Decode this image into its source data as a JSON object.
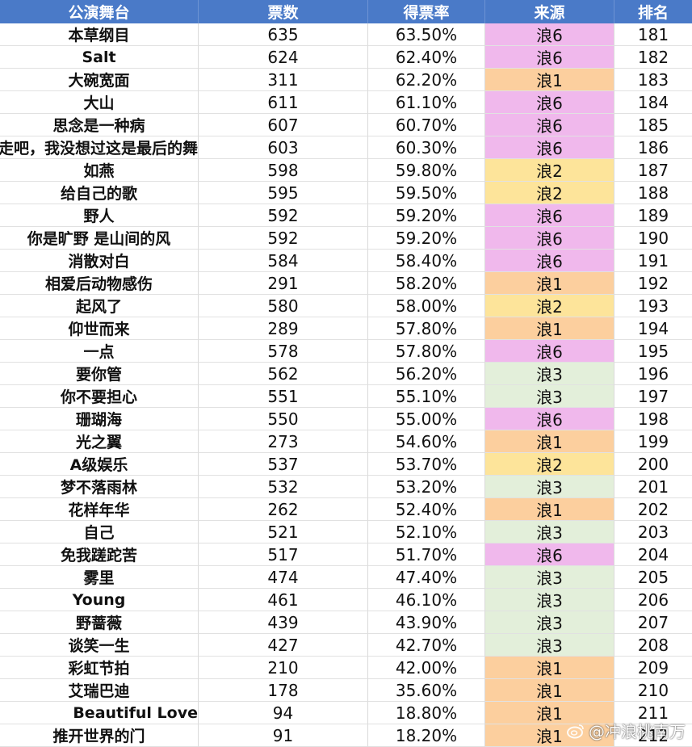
{
  "header": {
    "stage": "公演舞台",
    "votes": "票数",
    "rate": "得票率",
    "source": "来源",
    "rank": "排名"
  },
  "rows": [
    {
      "stage": "本草纲目",
      "votes": "635",
      "rate": "63.50%",
      "source": "浪6",
      "rank": "181"
    },
    {
      "stage": "Salt",
      "votes": "624",
      "rate": "62.40%",
      "source": "浪6",
      "rank": "182"
    },
    {
      "stage": "大碗宽面",
      "votes": "311",
      "rate": "62.20%",
      "source": "浪1",
      "rank": "183"
    },
    {
      "stage": "大山",
      "votes": "611",
      "rate": "61.10%",
      "source": "浪6",
      "rank": "184"
    },
    {
      "stage": "思念是一种病",
      "votes": "607",
      "rate": "60.70%",
      "source": "浪6",
      "rank": "185"
    },
    {
      "stage": "走吧，我没想过这是最后的舞",
      "votes": "603",
      "rate": "60.30%",
      "source": "浪6",
      "rank": "186"
    },
    {
      "stage": "如燕",
      "votes": "598",
      "rate": "59.80%",
      "source": "浪2",
      "rank": "187"
    },
    {
      "stage": "给自己的歌",
      "votes": "595",
      "rate": "59.50%",
      "source": "浪2",
      "rank": "188"
    },
    {
      "stage": "野人",
      "votes": "592",
      "rate": "59.20%",
      "source": "浪6",
      "rank": "189"
    },
    {
      "stage": "你是旷野 是山间的风",
      "votes": "592",
      "rate": "59.20%",
      "source": "浪6",
      "rank": "190"
    },
    {
      "stage": "消散对白",
      "votes": "584",
      "rate": "58.40%",
      "source": "浪6",
      "rank": "191"
    },
    {
      "stage": "相爱后动物感伤",
      "votes": "291",
      "rate": "58.20%",
      "source": "浪1",
      "rank": "192"
    },
    {
      "stage": "起风了",
      "votes": "580",
      "rate": "58.00%",
      "source": "浪2",
      "rank": "193"
    },
    {
      "stage": "仰世而来",
      "votes": "289",
      "rate": "57.80%",
      "source": "浪1",
      "rank": "194"
    },
    {
      "stage": "一点",
      "votes": "578",
      "rate": "57.80%",
      "source": "浪6",
      "rank": "195"
    },
    {
      "stage": "要你管",
      "votes": "562",
      "rate": "56.20%",
      "source": "浪3",
      "rank": "196"
    },
    {
      "stage": "你不要担心",
      "votes": "551",
      "rate": "55.10%",
      "source": "浪3",
      "rank": "197"
    },
    {
      "stage": "珊瑚海",
      "votes": "550",
      "rate": "55.00%",
      "source": "浪6",
      "rank": "198"
    },
    {
      "stage": "光之翼",
      "votes": "273",
      "rate": "54.60%",
      "source": "浪1",
      "rank": "199"
    },
    {
      "stage": "A级娱乐",
      "votes": "537",
      "rate": "53.70%",
      "source": "浪2",
      "rank": "200"
    },
    {
      "stage": "梦不落雨林",
      "votes": "532",
      "rate": "53.20%",
      "source": "浪3",
      "rank": "201"
    },
    {
      "stage": "花样年华",
      "votes": "262",
      "rate": "52.40%",
      "source": "浪1",
      "rank": "202"
    },
    {
      "stage": "自己",
      "votes": "521",
      "rate": "52.10%",
      "source": "浪3",
      "rank": "203"
    },
    {
      "stage": "免我蹉跎苦",
      "votes": "517",
      "rate": "51.70%",
      "source": "浪6",
      "rank": "204"
    },
    {
      "stage": "雾里",
      "votes": "474",
      "rate": "47.40%",
      "source": "浪3",
      "rank": "205"
    },
    {
      "stage": "Young",
      "votes": "461",
      "rate": "46.10%",
      "source": "浪3",
      "rank": "206"
    },
    {
      "stage": "野蔷薇",
      "votes": "439",
      "rate": "43.90%",
      "source": "浪3",
      "rank": "207"
    },
    {
      "stage": "谈笑一生",
      "votes": "427",
      "rate": "42.70%",
      "source": "浪3",
      "rank": "208"
    },
    {
      "stage": "彩虹节拍",
      "votes": "210",
      "rate": "42.00%",
      "source": "浪1",
      "rank": "209"
    },
    {
      "stage": "艾瑞巴迪",
      "votes": "178",
      "rate": "35.60%",
      "source": "浪1",
      "rank": "210"
    },
    {
      "stage": "Beautiful Love",
      "votes": "94",
      "rate": "18.80%",
      "source": "浪1",
      "rank": "211"
    },
    {
      "stage": "推开世界的门",
      "votes": "91",
      "rate": "18.20%",
      "source": "浪1",
      "rank": "212"
    }
  ],
  "source_colors": {
    "浪1": "#fccf9e",
    "浪2": "#fde49a",
    "浪3": "#e3efda",
    "浪6": "#f0b8ec"
  },
  "watermark": {
    "text": "@冲浪桃南万",
    "icon": "weibo-logo-icon"
  }
}
